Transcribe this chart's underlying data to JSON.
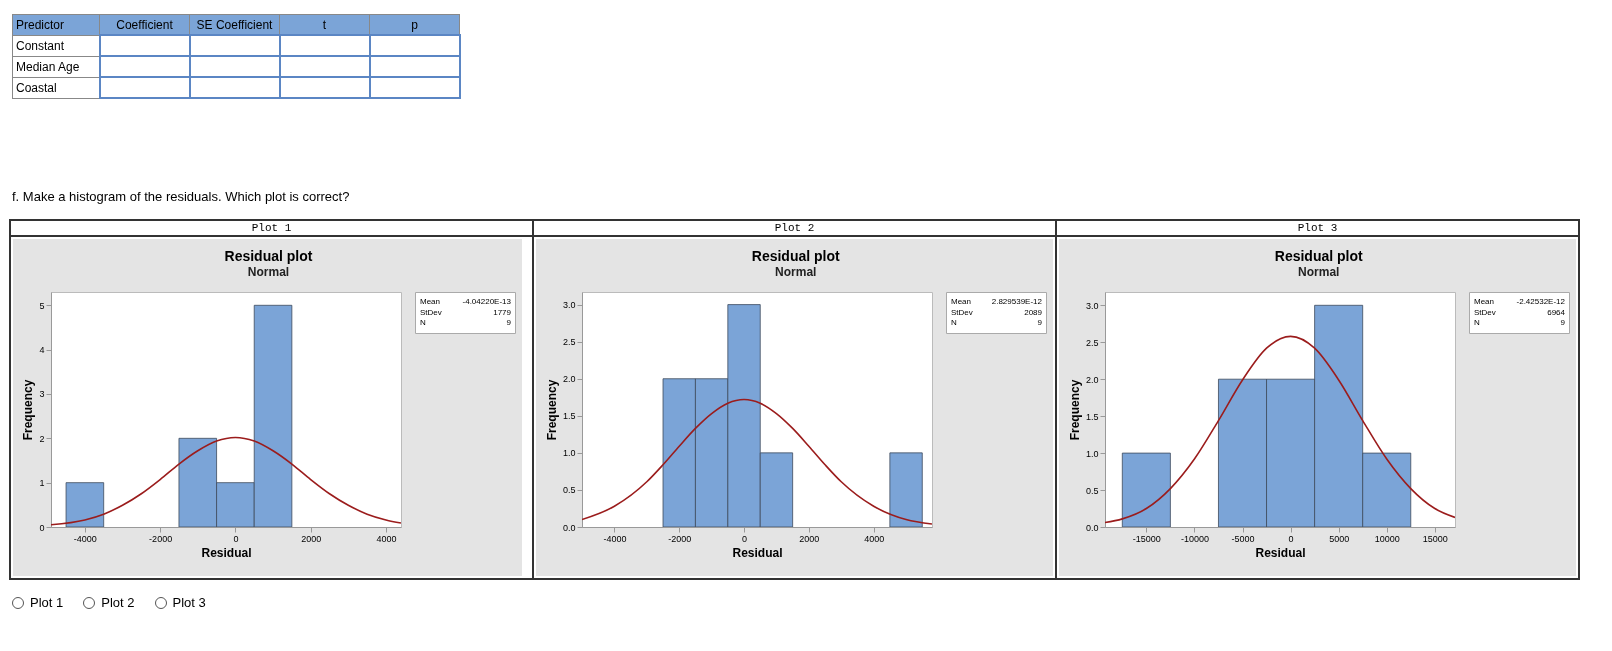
{
  "chart_data": [
    {
      "type": "other",
      "ylabel": "Predictor",
      "categories": [
        "Coefficient",
        "SE Coefficient",
        "t",
        "p"
      ],
      "y_categories": [
        "Constant",
        "Median Age",
        "Coastal"
      ],
      "cells": [
        [
          null,
          null,
          null,
          null
        ],
        [
          null,
          null,
          null,
          null
        ],
        [
          null,
          null,
          null,
          null
        ]
      ],
      "annotations": [
        "f. Make a histogram of the residuals. Which plot is correct?"
      ]
    },
    {
      "type": "histogram",
      "title": "Residual plot",
      "subtitle": "Normal",
      "xlabel": "Residual",
      "ylabel": "Frequency",
      "color": "#7ba4d7",
      "grid": false,
      "bins": [
        -4500,
        -3500,
        -2500,
        -1500,
        -500,
        500,
        1500
      ],
      "values": [
        1,
        0,
        0,
        2,
        1,
        5
      ],
      "xlim": [
        -4900,
        4400
      ],
      "ylim": [
        0,
        5.3
      ],
      "xticks": [
        -4000,
        -2000,
        0,
        2000,
        4000
      ],
      "yticks": [
        0,
        1,
        2,
        3,
        4,
        5
      ],
      "annotations": [
        "Plot 1",
        "Mean",
        "-4.04220E-13",
        "StDev",
        "1779",
        "N",
        "9"
      ],
      "series": [
        {
          "type": "line",
          "color": "#9b1c1c",
          "x": [
            -4900,
            -4000,
            -3500,
            -3000,
            -2500,
            -2000,
            -1500,
            -1000,
            -500,
            0,
            500,
            1000,
            1500,
            2000,
            2500,
            3000,
            3500,
            4000,
            4400
          ],
          "values": [
            0.05,
            0.16,
            0.29,
            0.49,
            0.75,
            1.07,
            1.42,
            1.72,
            1.94,
            2.02,
            1.94,
            1.72,
            1.42,
            1.07,
            0.75,
            0.49,
            0.29,
            0.16,
            0.09
          ]
        }
      ]
    },
    {
      "type": "histogram",
      "title": "Residual plot",
      "subtitle": "Normal",
      "xlabel": "Residual",
      "ylabel": "Frequency",
      "color": "#7ba4d7",
      "grid": false,
      "bins": [
        -2500,
        -1500,
        -500,
        500,
        1500,
        2500,
        3500,
        4500,
        5500
      ],
      "values": [
        2,
        2,
        3,
        1,
        0,
        0,
        0,
        1
      ],
      "xlim": [
        -5000,
        5800
      ],
      "ylim": [
        0,
        3.17
      ],
      "xticks": [
        -4000,
        -2000,
        0,
        2000,
        4000
      ],
      "yticks": [
        {
          "value": 0,
          "label": "0.0"
        },
        0.5,
        {
          "value": 1,
          "label": "1.0"
        },
        1.5,
        {
          "value": 2,
          "label": "2.0"
        },
        2.5,
        {
          "value": 3,
          "label": "3.0"
        }
      ],
      "annotations": [
        "Plot 2",
        "Mean",
        "2.829539E-12",
        "StDev",
        "2089",
        "N",
        "9"
      ],
      "series": [
        {
          "type": "line",
          "color": "#9b1c1c",
          "x": [
            -5000,
            -4000,
            -3000,
            -2500,
            -2000,
            -1500,
            -1000,
            -500,
            0,
            500,
            1000,
            1500,
            2000,
            2500,
            3000,
            4000,
            5000,
            5800
          ],
          "values": [
            0.1,
            0.28,
            0.61,
            0.84,
            1.09,
            1.33,
            1.53,
            1.67,
            1.72,
            1.67,
            1.53,
            1.33,
            1.09,
            0.84,
            0.61,
            0.28,
            0.1,
            0.04
          ]
        }
      ]
    },
    {
      "type": "histogram",
      "title": "Residual plot",
      "subtitle": "Normal",
      "xlabel": "Residual",
      "ylabel": "Frequency",
      "color": "#7ba4d7",
      "grid": false,
      "bins": [
        -17500,
        -12500,
        -7500,
        -2500,
        2500,
        7500,
        12500
      ],
      "values": [
        1,
        0,
        2,
        2,
        3,
        1
      ],
      "xlim": [
        -19300,
        17100
      ],
      "ylim": [
        0,
        3.18
      ],
      "xticks": [
        -15000,
        -10000,
        -5000,
        0,
        5000,
        10000,
        15000
      ],
      "yticks": [
        {
          "value": 0,
          "label": "0.0"
        },
        0.5,
        {
          "value": 1,
          "label": "1.0"
        },
        1.5,
        {
          "value": 2,
          "label": "2.0"
        },
        2.5,
        {
          "value": 3,
          "label": "3.0"
        }
      ],
      "annotations": [
        "Plot 3",
        "Mean",
        "-2.42532E-12",
        "StDev",
        "6964",
        "N",
        "9"
      ],
      "series": [
        {
          "type": "line",
          "color": "#9b1c1c",
          "x": [
            -19300,
            -17500,
            -15000,
            -12500,
            -10000,
            -7500,
            -5000,
            -2500,
            0,
            2500,
            5000,
            7500,
            10000,
            12500,
            15000,
            17100
          ],
          "values": [
            0.06,
            0.11,
            0.25,
            0.52,
            0.92,
            1.44,
            1.99,
            2.42,
            2.58,
            2.42,
            1.99,
            1.44,
            0.92,
            0.52,
            0.25,
            0.13
          ]
        }
      ]
    },
    {
      "type": "other",
      "categories": [
        "Plot 1",
        "Plot 2",
        "Plot 3"
      ]
    }
  ]
}
